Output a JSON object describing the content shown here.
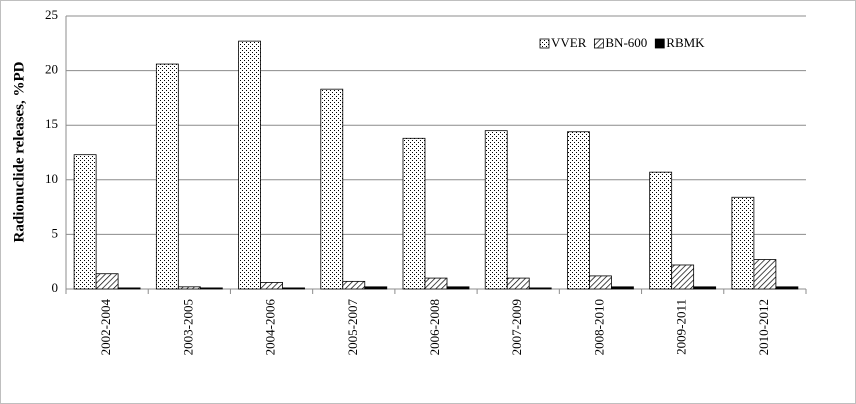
{
  "chart_data": {
    "type": "bar",
    "y_label": "Radionuclide releases, %PD",
    "categories": [
      "2002-2004",
      "2003-2005",
      "2004-2006",
      "2005-2007",
      "2006-2008",
      "2007-2009",
      "2008-2010",
      "2009-2011",
      "2010-2012"
    ],
    "series": [
      {
        "name": "VVER",
        "color": "#000000",
        "pattern": "dots",
        "values": [
          12.3,
          20.6,
          22.7,
          18.3,
          13.8,
          14.5,
          14.4,
          10.7,
          8.4
        ]
      },
      {
        "name": "BN-600",
        "color": "#000000",
        "pattern": "hatch",
        "values": [
          1.4,
          0.2,
          0.6,
          0.7,
          1.0,
          1.0,
          1.2,
          2.2,
          2.7
        ]
      },
      {
        "name": "RBMK",
        "color": "#000000",
        "pattern": "solid",
        "values": [
          0.1,
          0.1,
          0.1,
          0.2,
          0.2,
          0.1,
          0.2,
          0.2,
          0.2
        ]
      }
    ],
    "ylim": [
      0,
      25
    ],
    "yticks": [
      0,
      5,
      10,
      15,
      20,
      25
    ],
    "grid": true,
    "legend": "top-right"
  }
}
